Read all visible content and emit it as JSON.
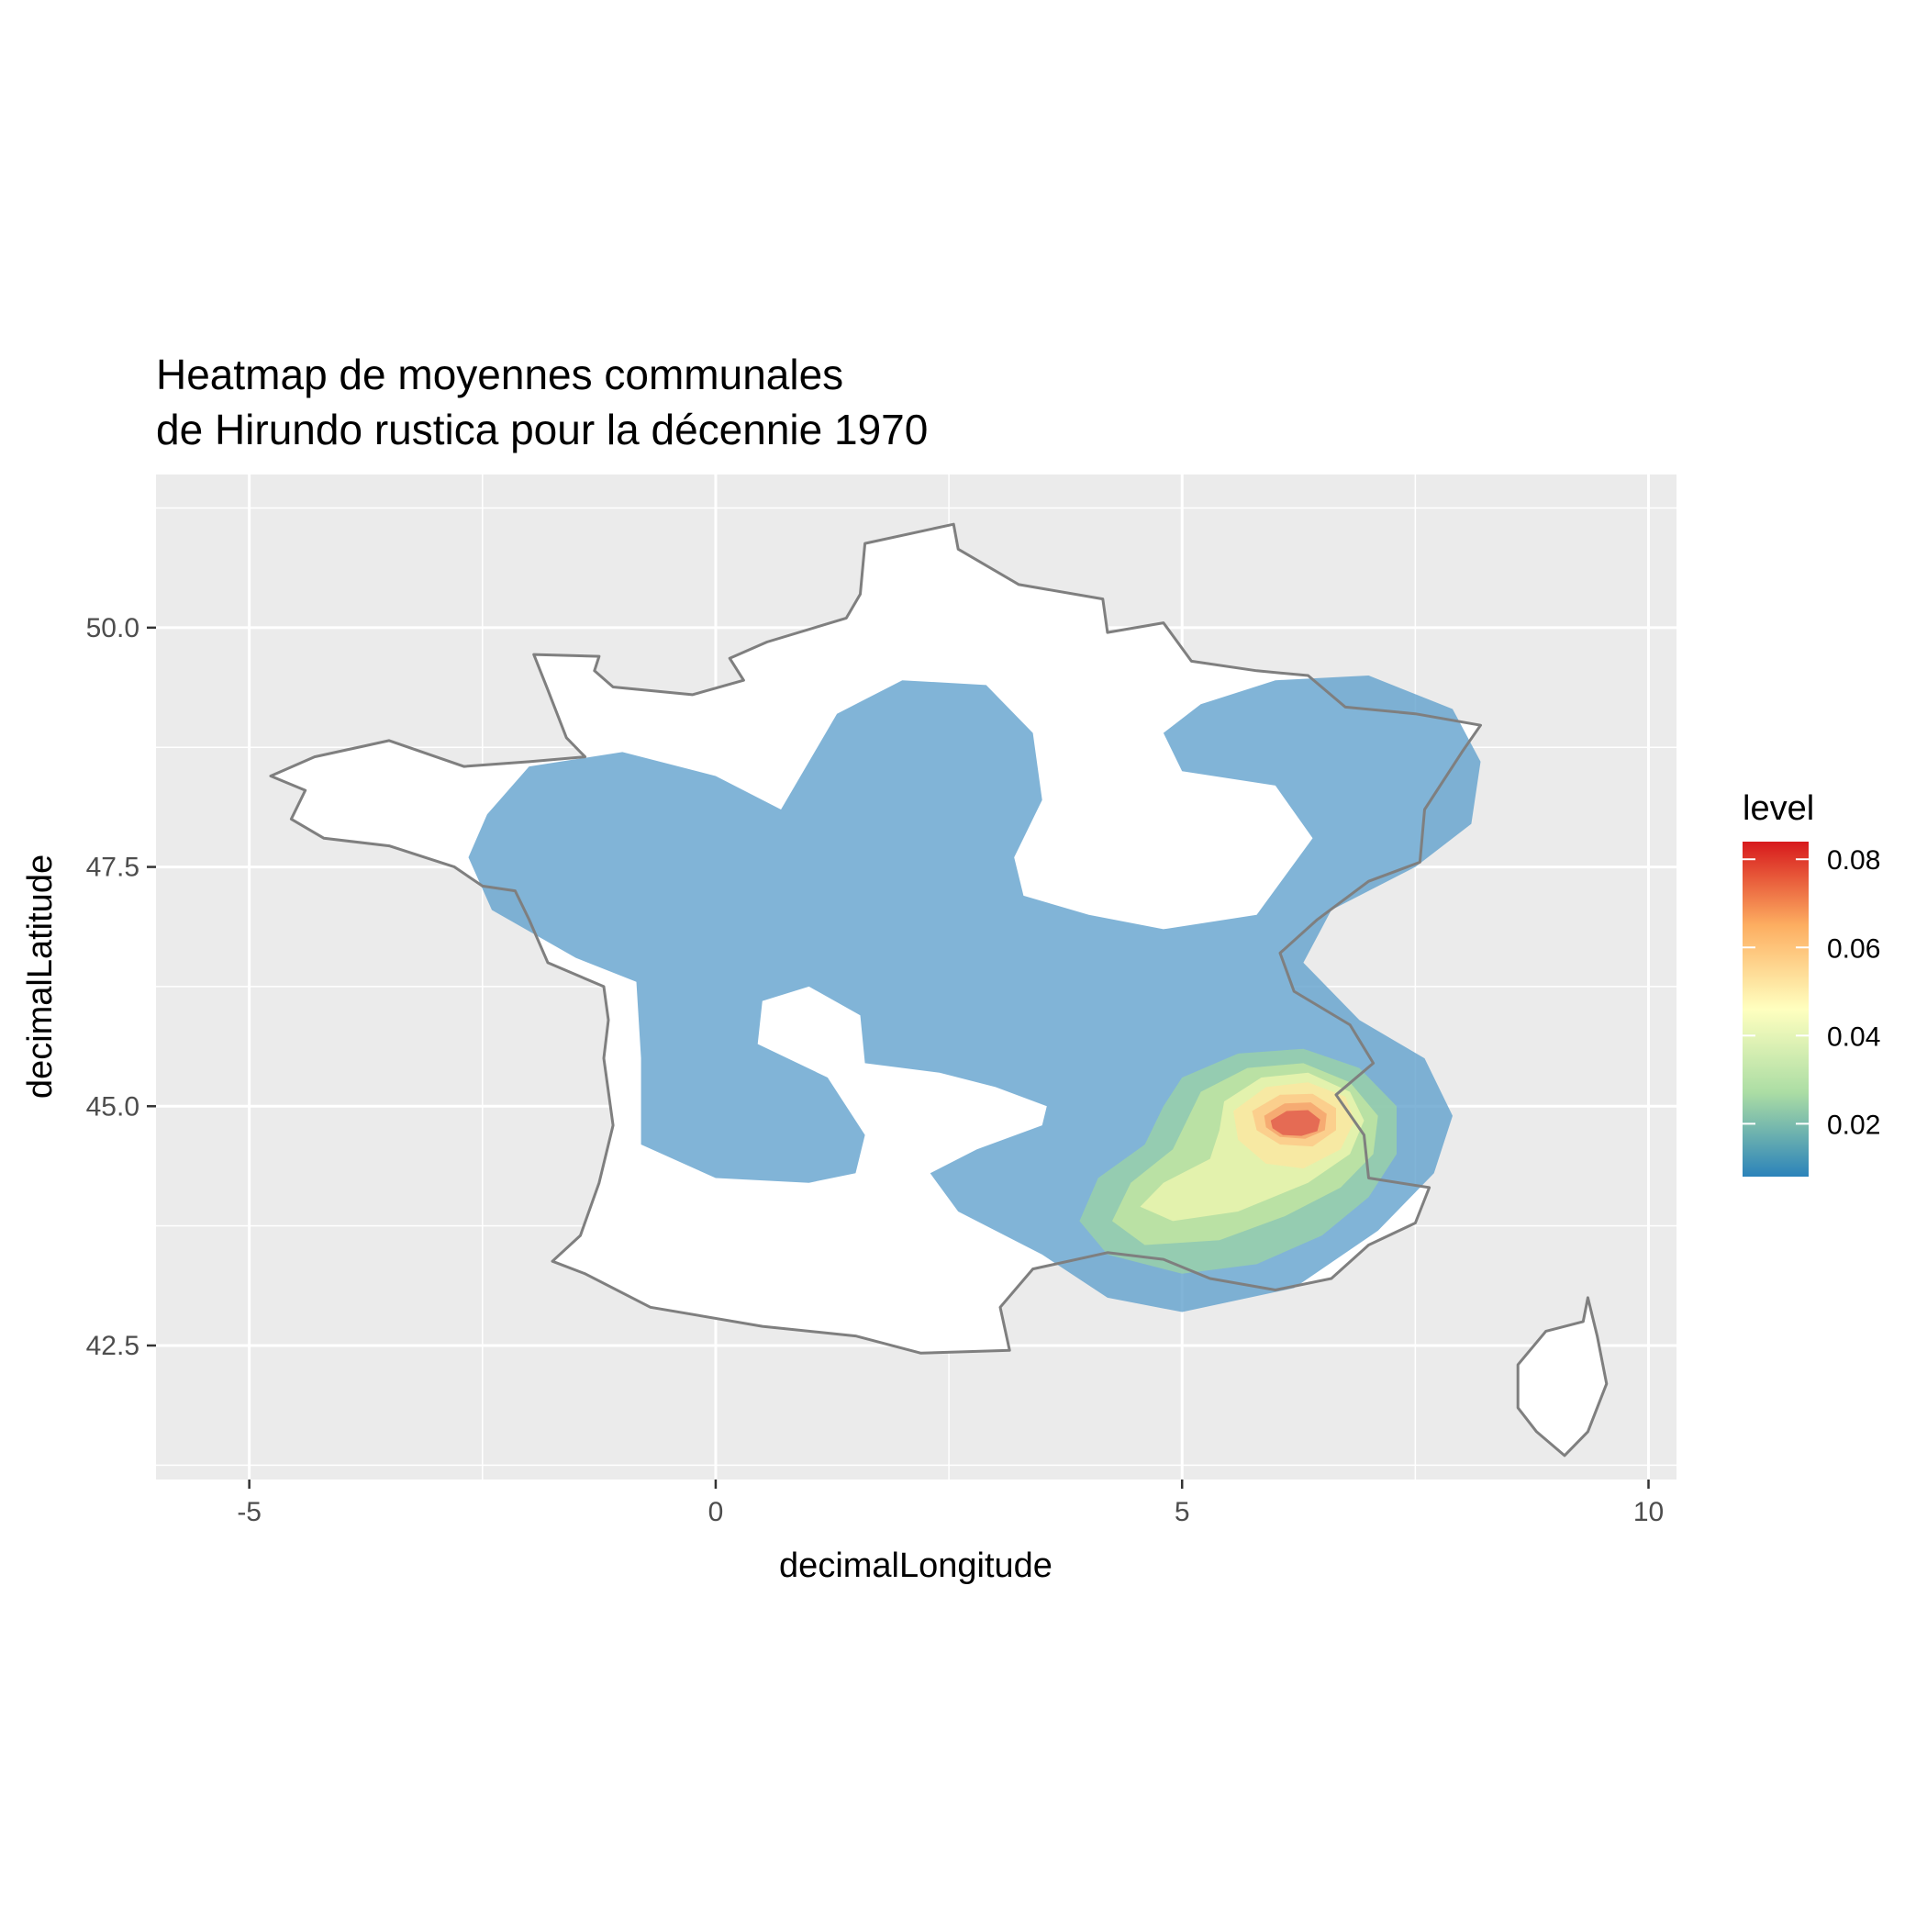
{
  "chart_data": {
    "type": "heatmap",
    "title_lines": [
      "Heatmap de moyennes communales",
      "de Hirundo rustica pour la décennie 1970"
    ],
    "xlabel": "decimalLongitude",
    "ylabel": "decimalLatitude",
    "xlim": [
      -6.0,
      10.3
    ],
    "ylim": [
      41.1,
      51.6
    ],
    "x_ticks": [
      -5,
      0,
      5,
      10
    ],
    "x_tick_labels": [
      "-5",
      "0",
      "5",
      "10"
    ],
    "y_ticks": [
      42.5,
      45.0,
      47.5,
      50.0
    ],
    "y_tick_labels": [
      "42.5",
      "45.0",
      "47.5",
      "50.0"
    ],
    "grid": true,
    "legend": {
      "title": "level",
      "placement": "right",
      "range": [
        0.008,
        0.084
      ],
      "breaks": [
        0.02,
        0.04,
        0.06,
        0.08
      ],
      "break_labels": [
        "0.02",
        "0.04",
        "0.06",
        "0.08"
      ],
      "palette": [
        "#2b83ba",
        "#abdda4",
        "#ffffbf",
        "#fdae61",
        "#d7191c"
      ]
    },
    "colors": {
      "panel": "#ebebeb",
      "grid": "#ffffff",
      "land": "#ffffff",
      "border": "#7f7f7f",
      "density_low": "#5e9fcc"
    },
    "density_levels": [
      {
        "level": 0.01,
        "color": "#5e9fcc",
        "polygons": [
          [
            [
              -2.45,
              48.05
            ],
            [
              -2.0,
              48.55
            ],
            [
              -1.0,
              48.7
            ],
            [
              0.0,
              48.45
            ],
            [
              0.7,
              48.1
            ],
            [
              1.3,
              49.1
            ],
            [
              2.0,
              49.45
            ],
            [
              2.9,
              49.4
            ],
            [
              3.4,
              48.9
            ],
            [
              3.5,
              48.2
            ],
            [
              3.2,
              47.6
            ],
            [
              3.3,
              47.2
            ],
            [
              4.0,
              47.0
            ],
            [
              4.8,
              46.85
            ],
            [
              5.8,
              47.0
            ],
            [
              6.1,
              47.4
            ],
            [
              6.4,
              47.8
            ],
            [
              6.0,
              48.35
            ],
            [
              5.0,
              48.5
            ],
            [
              4.8,
              48.9
            ],
            [
              5.2,
              49.2
            ],
            [
              6.0,
              49.45
            ],
            [
              7.0,
              49.5
            ],
            [
              7.9,
              49.15
            ],
            [
              8.2,
              48.6
            ],
            [
              8.1,
              47.95
            ],
            [
              7.5,
              47.5
            ],
            [
              6.6,
              47.05
            ],
            [
              6.3,
              46.5
            ],
            [
              6.9,
              45.9
            ],
            [
              7.6,
              45.5
            ],
            [
              7.9,
              44.9
            ],
            [
              7.7,
              44.3
            ],
            [
              7.1,
              43.7
            ],
            [
              6.2,
              43.1
            ],
            [
              5.0,
              42.85
            ],
            [
              4.2,
              43.0
            ],
            [
              3.5,
              43.45
            ],
            [
              2.6,
              43.9
            ],
            [
              2.3,
              44.3
            ],
            [
              2.8,
              44.55
            ],
            [
              3.5,
              44.8
            ],
            [
              3.55,
              45.0
            ],
            [
              3.0,
              45.2
            ],
            [
              2.4,
              45.35
            ],
            [
              1.6,
              45.45
            ],
            [
              1.55,
              45.95
            ],
            [
              1.0,
              46.25
            ],
            [
              0.5,
              46.1
            ],
            [
              0.45,
              45.65
            ],
            [
              1.2,
              45.3
            ],
            [
              1.6,
              44.7
            ],
            [
              1.5,
              44.3
            ],
            [
              1.0,
              44.2
            ],
            [
              0.0,
              44.25
            ],
            [
              -0.8,
              44.6
            ],
            [
              -0.8,
              45.5
            ],
            [
              -0.85,
              46.3
            ],
            [
              -1.5,
              46.55
            ],
            [
              -2.4,
              47.05
            ],
            [
              -2.65,
              47.6
            ]
          ]
        ]
      },
      {
        "level": 0.02,
        "color": "#9bd2a6",
        "polygons": [
          [
            [
              5.0,
              45.3
            ],
            [
              5.6,
              45.55
            ],
            [
              6.3,
              45.6
            ],
            [
              6.9,
              45.4
            ],
            [
              7.3,
              45.0
            ],
            [
              7.3,
              44.5
            ],
            [
              7.0,
              44.05
            ],
            [
              6.5,
              43.65
            ],
            [
              5.8,
              43.35
            ],
            [
              5.0,
              43.25
            ],
            [
              4.2,
              43.45
            ],
            [
              3.9,
              43.8
            ],
            [
              4.1,
              44.25
            ],
            [
              4.6,
              44.6
            ],
            [
              4.8,
              45.0
            ]
          ]
        ]
      },
      {
        "level": 0.03,
        "color": "#c4e7a0",
        "polygons": [
          [
            [
              5.2,
              45.15
            ],
            [
              5.7,
              45.4
            ],
            [
              6.3,
              45.45
            ],
            [
              6.8,
              45.25
            ],
            [
              7.1,
              44.9
            ],
            [
              7.05,
              44.5
            ],
            [
              6.7,
              44.15
            ],
            [
              6.1,
              43.85
            ],
            [
              5.4,
              43.6
            ],
            [
              4.6,
              43.55
            ],
            [
              4.25,
              43.8
            ],
            [
              4.45,
              44.2
            ],
            [
              4.9,
              44.55
            ]
          ]
        ]
      },
      {
        "level": 0.04,
        "color": "#eef6b0",
        "polygons": [
          [
            [
              5.45,
              45.05
            ],
            [
              5.85,
              45.3
            ],
            [
              6.35,
              45.35
            ],
            [
              6.8,
              45.15
            ],
            [
              6.95,
              44.85
            ],
            [
              6.8,
              44.5
            ],
            [
              6.35,
              44.2
            ],
            [
              5.6,
              43.9
            ],
            [
              4.9,
              43.8
            ],
            [
              4.55,
              43.95
            ],
            [
              4.8,
              44.2
            ],
            [
              5.3,
              44.45
            ],
            [
              5.4,
              44.75
            ]
          ]
        ]
      },
      {
        "level": 0.05,
        "color": "#fce7a0",
        "polygons": [
          [
            [
              5.55,
              44.95
            ],
            [
              5.9,
              45.2
            ],
            [
              6.35,
              45.25
            ],
            [
              6.75,
              45.1
            ],
            [
              6.85,
              44.85
            ],
            [
              6.7,
              44.55
            ],
            [
              6.3,
              44.35
            ],
            [
              5.9,
              44.4
            ],
            [
              5.6,
              44.65
            ]
          ]
        ]
      },
      {
        "level": 0.06,
        "color": "#fcc886",
        "polygons": [
          [
            [
              5.75,
              44.95
            ],
            [
              6.05,
              45.12
            ],
            [
              6.4,
              45.13
            ],
            [
              6.65,
              44.98
            ],
            [
              6.65,
              44.75
            ],
            [
              6.4,
              44.58
            ],
            [
              6.05,
              44.6
            ],
            [
              5.8,
              44.75
            ]
          ]
        ]
      },
      {
        "level": 0.07,
        "color": "#f5a06a",
        "polygons": [
          [
            [
              5.88,
              44.9
            ],
            [
              6.1,
              45.03
            ],
            [
              6.38,
              45.04
            ],
            [
              6.55,
              44.92
            ],
            [
              6.53,
              44.75
            ],
            [
              6.32,
              44.66
            ],
            [
              6.05,
              44.68
            ],
            [
              5.9,
              44.78
            ]
          ]
        ]
      },
      {
        "level": 0.08,
        "color": "#e0584c",
        "polygons": [
          [
            [
              5.95,
              44.85
            ],
            [
              6.12,
              44.95
            ],
            [
              6.35,
              44.96
            ],
            [
              6.48,
              44.86
            ],
            [
              6.45,
              44.74
            ],
            [
              6.28,
              44.69
            ],
            [
              6.08,
              44.7
            ],
            [
              5.97,
              44.77
            ]
          ]
        ]
      }
    ],
    "land_polygons": [
      [
        [
          2.55,
          51.08
        ],
        [
          1.6,
          50.88
        ],
        [
          1.55,
          50.35
        ],
        [
          1.4,
          50.1
        ],
        [
          0.55,
          49.85
        ],
        [
          0.15,
          49.68
        ],
        [
          0.3,
          49.45
        ],
        [
          -0.25,
          49.3
        ],
        [
          -1.1,
          49.38
        ],
        [
          -1.3,
          49.55
        ],
        [
          -1.25,
          49.7
        ],
        [
          -1.95,
          49.72
        ],
        [
          -1.8,
          49.35
        ],
        [
          -1.6,
          48.85
        ],
        [
          -1.4,
          48.65
        ],
        [
          -2.0,
          48.6
        ],
        [
          -2.7,
          48.55
        ],
        [
          -3.5,
          48.82
        ],
        [
          -4.3,
          48.65
        ],
        [
          -4.77,
          48.45
        ],
        [
          -4.4,
          48.3
        ],
        [
          -4.55,
          48.0
        ],
        [
          -4.2,
          47.8
        ],
        [
          -3.5,
          47.72
        ],
        [
          -2.8,
          47.5
        ],
        [
          -2.5,
          47.3
        ],
        [
          -2.15,
          47.25
        ],
        [
          -2.0,
          46.95
        ],
        [
          -1.8,
          46.5
        ],
        [
          -1.2,
          46.25
        ],
        [
          -1.15,
          45.9
        ],
        [
          -1.2,
          45.5
        ],
        [
          -1.1,
          44.8
        ],
        [
          -1.25,
          44.2
        ],
        [
          -1.45,
          43.65
        ],
        [
          -1.75,
          43.38
        ],
        [
          -1.4,
          43.25
        ],
        [
          -0.7,
          42.9
        ],
        [
          0.5,
          42.7
        ],
        [
          1.5,
          42.6
        ],
        [
          2.2,
          42.42
        ],
        [
          3.15,
          42.45
        ],
        [
          3.05,
          42.9
        ],
        [
          3.4,
          43.3
        ],
        [
          4.2,
          43.47
        ],
        [
          4.8,
          43.4
        ],
        [
          5.3,
          43.2
        ],
        [
          6.0,
          43.08
        ],
        [
          6.6,
          43.2
        ],
        [
          7.0,
          43.55
        ],
        [
          7.5,
          43.78
        ],
        [
          7.65,
          44.15
        ],
        [
          7.0,
          44.25
        ],
        [
          6.95,
          44.7
        ],
        [
          6.65,
          45.12
        ],
        [
          7.05,
          45.45
        ],
        [
          6.8,
          45.85
        ],
        [
          6.2,
          46.2
        ],
        [
          6.05,
          46.6
        ],
        [
          6.45,
          46.95
        ],
        [
          7.0,
          47.35
        ],
        [
          7.55,
          47.55
        ],
        [
          7.6,
          48.1
        ],
        [
          8.0,
          48.7
        ],
        [
          8.2,
          48.98
        ],
        [
          7.5,
          49.1
        ],
        [
          6.75,
          49.17
        ],
        [
          6.35,
          49.5
        ],
        [
          5.8,
          49.55
        ],
        [
          5.1,
          49.65
        ],
        [
          4.8,
          50.05
        ],
        [
          4.2,
          49.95
        ],
        [
          4.15,
          50.3
        ],
        [
          3.25,
          50.45
        ],
        [
          2.6,
          50.82
        ]
      ],
      [
        [
          9.35,
          43.0
        ],
        [
          9.45,
          42.6
        ],
        [
          9.55,
          42.1
        ],
        [
          9.35,
          41.6
        ],
        [
          9.1,
          41.35
        ],
        [
          8.8,
          41.6
        ],
        [
          8.6,
          41.85
        ],
        [
          8.6,
          42.3
        ],
        [
          8.9,
          42.65
        ],
        [
          9.3,
          42.75
        ]
      ]
    ]
  }
}
